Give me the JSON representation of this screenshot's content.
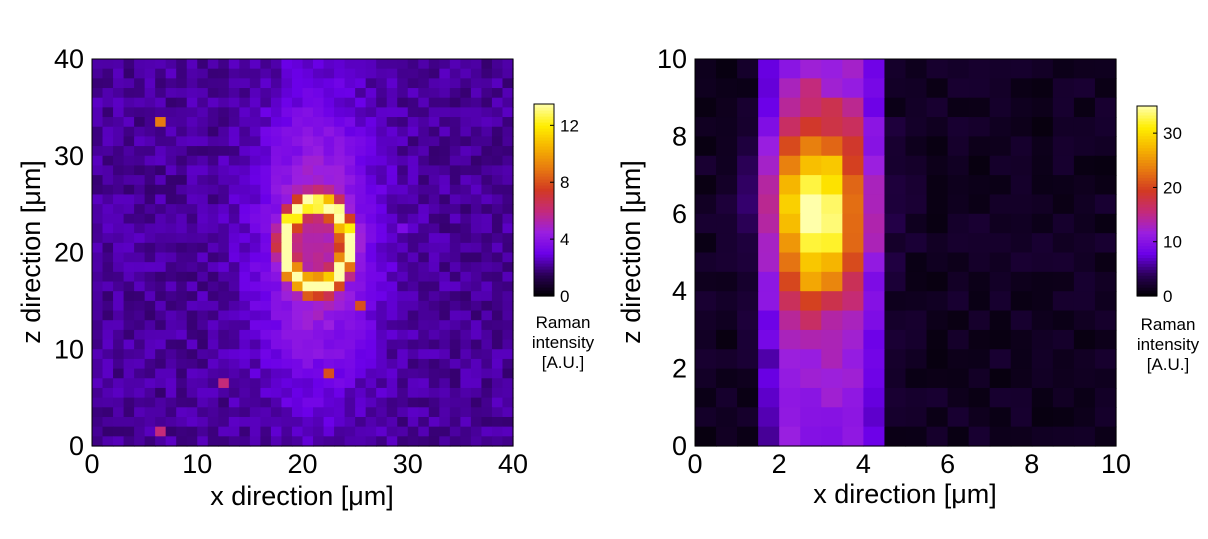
{
  "colormap_stops": [
    "#000000",
    "#2a0055",
    "#6b00e8",
    "#9a1fe0",
    "#c42a7a",
    "#d23a22",
    "#e77a10",
    "#f6b400",
    "#ffee00",
    "#ffffaa"
  ],
  "chart_data": [
    {
      "type": "heatmap",
      "xlabel": "x direction [μm]",
      "ylabel": "z direction [μm]",
      "xlim": [
        0,
        40
      ],
      "ylim": [
        0,
        40
      ],
      "xticks": [
        "0",
        "10",
        "20",
        "30",
        "40"
      ],
      "yticks": [
        "0",
        "10",
        "20",
        "30",
        "40"
      ],
      "grid_cells": [
        40,
        40
      ],
      "background_level": 2.2,
      "features": {
        "ring": {
          "center_x": 21.3,
          "center_z": 20.8,
          "radius_x": 3.0,
          "radius_z": 4.3,
          "peak_value": 10.5,
          "hot_spots": [
            {
              "x": 24.3,
              "z": 21.0,
              "value": 13
            },
            {
              "x": 18.5,
              "z": 21.0,
              "value": 12.5
            }
          ]
        },
        "halo": {
          "center_x": 21.3,
          "center_z": 21.0,
          "sigma_x": 3.6,
          "sigma_z": 9.5,
          "peak_value": 3.2
        },
        "outliers": [
          {
            "x": 6.4,
            "z": 33.6,
            "value": 9
          },
          {
            "x": 10.8,
            "z": 38.0,
            "value": 0
          },
          {
            "x": 29.4,
            "z": 22.2,
            "value": 3.5
          },
          {
            "x": 25.7,
            "z": 14.4,
            "value": 8
          },
          {
            "x": 22.6,
            "z": 7.6,
            "value": 8
          },
          {
            "x": 12.7,
            "z": 6.4,
            "value": 6
          },
          {
            "x": 6.4,
            "z": 1.3,
            "value": 6
          }
        ]
      },
      "colorbar": {
        "min": 0,
        "max": 13.5,
        "ticks": [
          0,
          4,
          8,
          12
        ],
        "title": [
          "Raman",
          "intensity",
          "[A.U.]"
        ]
      }
    },
    {
      "type": "heatmap",
      "xlabel": "x direction [μm]",
      "ylabel": "z direction [μm]",
      "xlim": [
        0,
        10
      ],
      "ylim": [
        0,
        10
      ],
      "xticks": [
        "0",
        "2",
        "4",
        "6",
        "8",
        "10"
      ],
      "yticks": [
        "0",
        "2",
        "4",
        "6",
        "8",
        "10"
      ],
      "grid_cells": [
        20,
        20
      ],
      "background_level": 1.5,
      "features": {
        "stripe": {
          "x_start": 1.5,
          "x_end": 4.5,
          "level": 9
        },
        "blob": {
          "center_x": 2.9,
          "center_z": 6.0,
          "sigma_x": 0.75,
          "sigma_z": 1.6,
          "peak_value": 34
        }
      },
      "colorbar": {
        "min": 0,
        "max": 35,
        "ticks": [
          0,
          10,
          20,
          30
        ],
        "title": [
          "Raman",
          "intensity",
          "[A.U.]"
        ]
      }
    }
  ]
}
